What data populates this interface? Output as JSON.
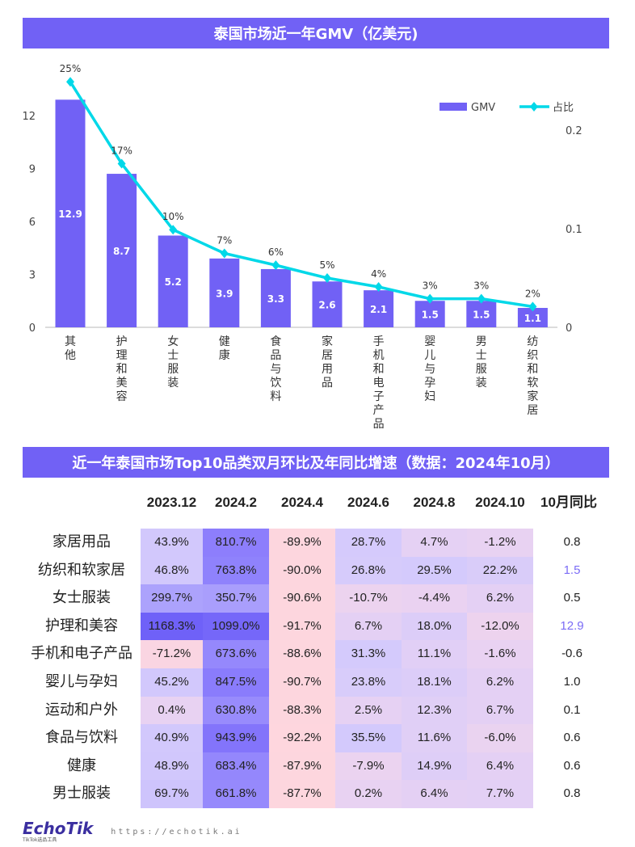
{
  "chart_data": {
    "type": "bar+line",
    "title": "泰国市场近一年GMV（亿美元)",
    "categories": [
      "其他",
      "护理和美容",
      "女士服装",
      "健康",
      "食品与饮料",
      "家居用品",
      "手机和电子产品",
      "婴儿与孕妇",
      "男士服装",
      "纺织和软家居"
    ],
    "series": [
      {
        "name": "GMV",
        "type": "bar",
        "axis": "left",
        "color": "#7161f5",
        "values": [
          12.9,
          8.7,
          5.2,
          3.9,
          3.3,
          2.6,
          2.1,
          1.5,
          1.5,
          1.1
        ]
      },
      {
        "name": "占比",
        "type": "line",
        "axis": "right",
        "color": "#00d8e8",
        "values": [
          0.249,
          0.166,
          0.099,
          0.075,
          0.063,
          0.05,
          0.041,
          0.029,
          0.029,
          0.021
        ],
        "labels": [
          "25%",
          "17%",
          "10%",
          "7%",
          "6%",
          "5%",
          "4%",
          "3%",
          "3%",
          "2%"
        ]
      }
    ],
    "left_axis": {
      "ylim": [
        0,
        12
      ],
      "ticks": [
        "0",
        "3",
        "6",
        "9",
        "12"
      ]
    },
    "right_axis": {
      "ylim": [
        0,
        0.2
      ],
      "ticks": [
        "0",
        "0.1",
        "0.2"
      ]
    },
    "legend": "top-right",
    "grid": false
  },
  "table": {
    "title": "近一年泰国市场Top10品类双月环比及年同比增速（数据：2024年10月）",
    "columns": [
      "2023.12",
      "2024.2",
      "2024.4",
      "2024.6",
      "2024.8",
      "2024.10",
      "10月同比"
    ],
    "rows": [
      {
        "label": "家居用品",
        "values": [
          "43.9%",
          "810.7%",
          "-89.9%",
          "28.7%",
          "4.7%",
          "-1.2%"
        ],
        "yoy": "0.8",
        "highlight": false
      },
      {
        "label": "纺织和软家居",
        "values": [
          "46.8%",
          "763.8%",
          "-90.0%",
          "26.8%",
          "29.5%",
          "22.2%"
        ],
        "yoy": "1.5",
        "highlight": true
      },
      {
        "label": "女士服装",
        "values": [
          "299.7%",
          "350.7%",
          "-90.6%",
          "-10.7%",
          "-4.4%",
          "6.2%"
        ],
        "yoy": "0.5",
        "highlight": false
      },
      {
        "label": "护理和美容",
        "values": [
          "1168.3%",
          "1099.0%",
          "-91.7%",
          "6.7%",
          "18.0%",
          "-12.0%"
        ],
        "yoy": "12.9",
        "highlight": true
      },
      {
        "label": "手机和电子产品",
        "values": [
          "-71.2%",
          "673.6%",
          "-88.6%",
          "31.3%",
          "11.1%",
          "-1.6%"
        ],
        "yoy": "-0.6",
        "highlight": false
      },
      {
        "label": "婴儿与孕妇",
        "values": [
          "45.2%",
          "847.5%",
          "-90.7%",
          "23.8%",
          "18.1%",
          "6.2%"
        ],
        "yoy": "1.0",
        "highlight": false
      },
      {
        "label": "运动和户外",
        "values": [
          "0.4%",
          "630.8%",
          "-88.3%",
          "2.5%",
          "12.3%",
          "6.7%"
        ],
        "yoy": "0.1",
        "highlight": false
      },
      {
        "label": "食品与饮料",
        "values": [
          "40.9%",
          "943.9%",
          "-92.2%",
          "35.5%",
          "11.6%",
          "-6.0%"
        ],
        "yoy": "0.6",
        "highlight": false
      },
      {
        "label": "健康",
        "values": [
          "48.9%",
          "683.4%",
          "-87.9%",
          "-7.9%",
          "14.9%",
          "6.4%"
        ],
        "yoy": "0.6",
        "highlight": false
      },
      {
        "label": "男士服装",
        "values": [
          "69.7%",
          "661.8%",
          "-87.7%",
          "0.2%",
          "6.4%",
          "7.7%"
        ],
        "yoy": "0.8",
        "highlight": false
      }
    ],
    "highlight_color": "#7b6cf6"
  },
  "footer": {
    "logo": "EchoTik",
    "logo_sub": "TikTok选品工具",
    "url": "https://echotik.ai"
  }
}
